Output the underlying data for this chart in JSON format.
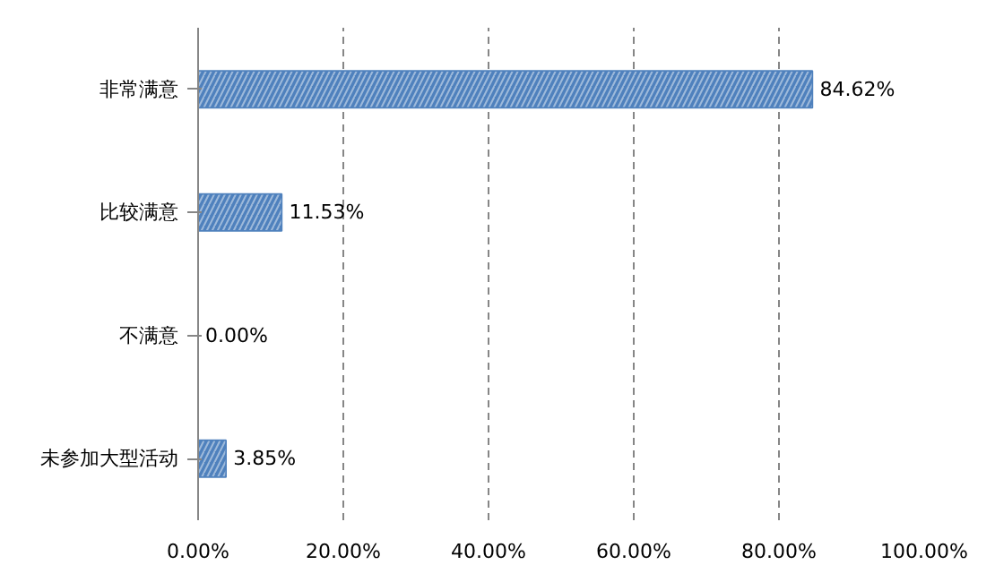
{
  "chart_data": {
    "type": "bar",
    "orientation": "horizontal",
    "categories": [
      "非常满意",
      "比较满意",
      "不满意",
      "未参加大型活动"
    ],
    "values": [
      84.62,
      11.53,
      0.0,
      3.85
    ],
    "value_labels": [
      "84.62%",
      "11.53%",
      "0.00%",
      "3.85%"
    ],
    "color": "#4f81bd",
    "xlim": [
      0,
      100
    ],
    "xticks": [
      {
        "value": 0,
        "label": "0.00%"
      },
      {
        "value": 20,
        "label": "20.00%"
      },
      {
        "value": 40,
        "label": "40.00%"
      },
      {
        "value": 60,
        "label": "60.00%"
      },
      {
        "value": 80,
        "label": "80.00%"
      },
      {
        "value": 100,
        "label": "100.00%"
      }
    ],
    "grid": "x"
  }
}
